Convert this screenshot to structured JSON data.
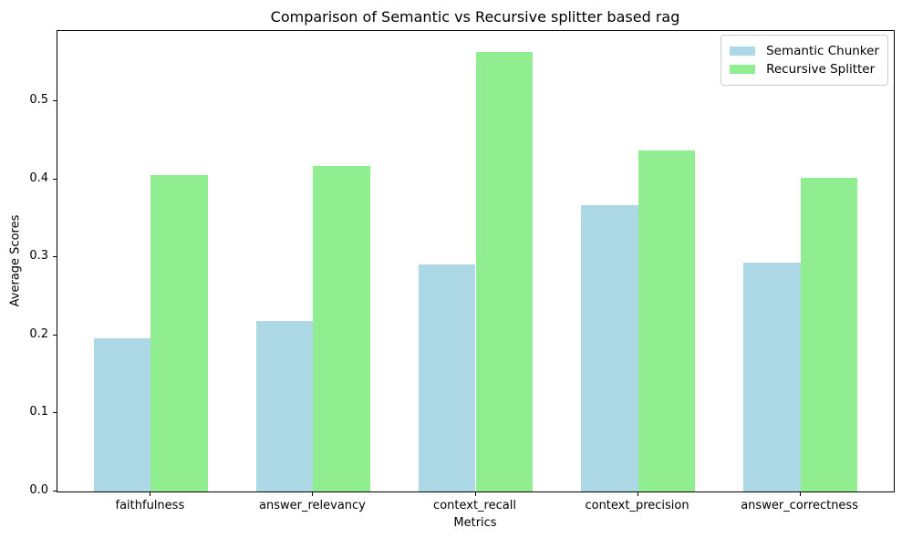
{
  "chart_data": {
    "type": "bar",
    "title": "Comparison of Semantic vs Recursive splitter based rag",
    "xlabel": "Metrics",
    "ylabel": "Average Scores",
    "categories": [
      "faithfulness",
      "answer_relevancy",
      "context_recall",
      "context_precision",
      "answer_correctness"
    ],
    "series": [
      {
        "name": "Semantic Chunker",
        "color": "#ADD8E6",
        "values": [
          0.196,
          0.219,
          0.291,
          0.367,
          0.293
        ]
      },
      {
        "name": "Recursive Splitter",
        "color": "#90EE90",
        "values": [
          0.405,
          0.417,
          0.563,
          0.437,
          0.402
        ]
      }
    ],
    "yticks": [
      0.0,
      0.1,
      0.2,
      0.3,
      0.4,
      0.5
    ],
    "ylim": [
      0,
      0.59
    ],
    "bar_width_fraction": 0.35,
    "group_margin": 0.575,
    "legend_position": "upper right",
    "grid": false
  }
}
